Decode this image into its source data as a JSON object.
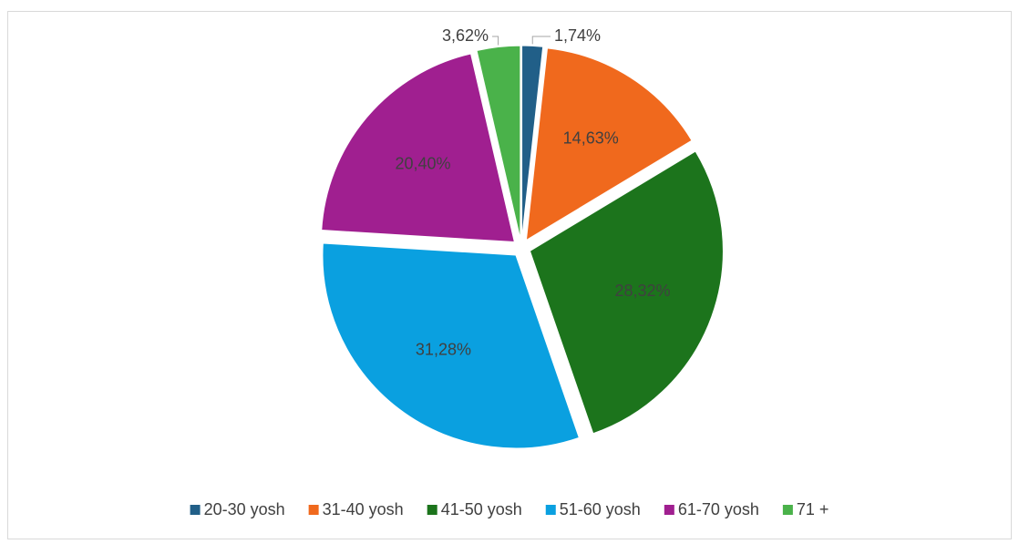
{
  "chart_data": {
    "type": "pie",
    "categories": [
      "20-30 yosh",
      "31-40 yosh",
      "41-50 yosh",
      "51-60 yosh",
      "61-70 yosh",
      "71 +"
    ],
    "values": [
      1.74,
      14.63,
      28.32,
      31.28,
      20.4,
      3.62
    ],
    "value_labels": [
      "1,74%",
      "14,63%",
      "28,32%",
      "31,28%",
      "20,40%",
      "3,62%"
    ],
    "colors": [
      "#215f88",
      "#f0691d",
      "#1c741c",
      "#0aa0e0",
      "#a01f90",
      "#4ab24a"
    ],
    "legend": "bottom"
  }
}
